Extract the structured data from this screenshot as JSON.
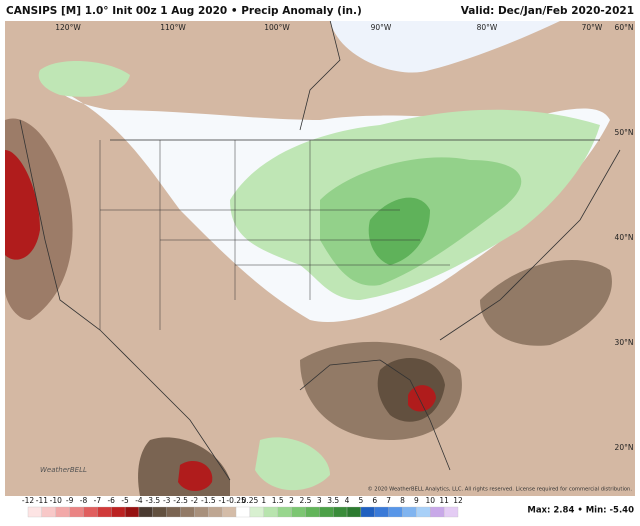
{
  "header": {
    "title": "CANSIPS [M] 1.0° Init 00z 1 Aug 2020 • Precip Anomaly (in.)",
    "valid": "Valid: Dec/Jan/Feb 2020-2021"
  },
  "map": {
    "lon_labels": [
      "120°W",
      "110°W",
      "100°W",
      "90°W",
      "80°W",
      "70°W"
    ],
    "lat_labels": [
      "60°N",
      "50°N",
      "40°N",
      "30°N",
      "20°N"
    ],
    "logo": "WeatherBELL",
    "copyright": "© 2020 WeatherBELL Analytics, LLC. All rights reserved. License required for commercial distribution."
  },
  "legend": {
    "ticks": [
      -12,
      -11,
      -10,
      -9,
      -8,
      -7,
      -6,
      -5,
      -4,
      -3.5,
      -3,
      -2.5,
      -2,
      -1.5,
      -1,
      -0.25,
      0.25,
      1,
      1.5,
      2,
      2.5,
      3,
      3.5,
      4,
      5,
      6,
      7,
      8,
      9,
      10,
      11,
      12
    ],
    "colors": [
      "#fde4e4",
      "#f8c8c8",
      "#f2a8a8",
      "#ea8484",
      "#e05e5e",
      "#d03a3a",
      "#bb2222",
      "#961212",
      "#4a3a30",
      "#62503f",
      "#7a6452",
      "#927a66",
      "#a8907c",
      "#bea692",
      "#d4bca8",
      "#ffffff",
      "#d8f0d0",
      "#b8e4ae",
      "#98d68e",
      "#7cc672",
      "#62b45a",
      "#4ca048",
      "#3a8c3a",
      "#2c7a30",
      "#2060c0",
      "#3a7ad8",
      "#5896e8",
      "#80b4f0",
      "#a8d0f8",
      "#c8a8e8",
      "#e4ccf4"
    ]
  },
  "footer": {
    "stats": "Max: 2.84 • Min: -5.40"
  }
}
